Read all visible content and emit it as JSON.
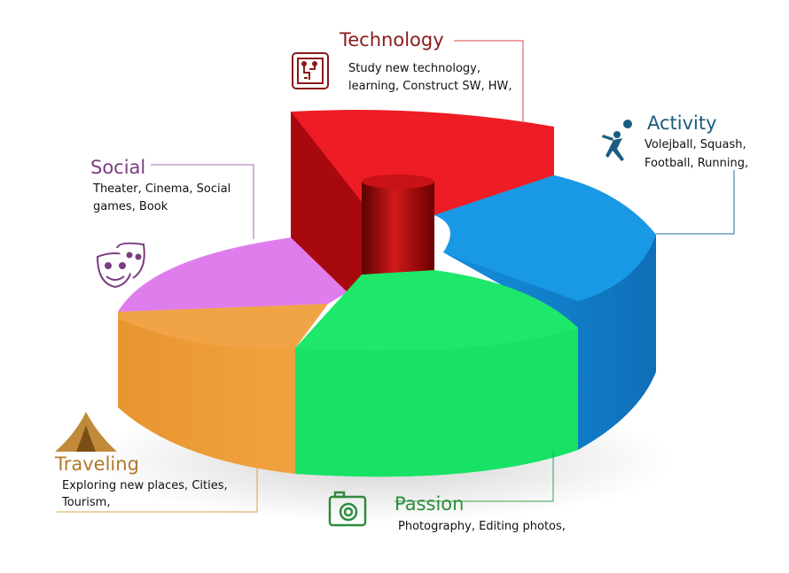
{
  "segments": [
    {
      "key": "technology",
      "title": "Technology",
      "line1": "Study new technology,",
      "line2": "learning, Construct SW, HW,",
      "color": "#8b1a1a",
      "fill": "#ee1c24",
      "icon": "circuit-chip-icon"
    },
    {
      "key": "activity",
      "title": "Activity",
      "line1": "Volejball, Squash,",
      "line2": "Football, Running,",
      "color": "#1a5c80",
      "fill": "#1996e3",
      "icon": "volleyball-player-icon"
    },
    {
      "key": "social",
      "title": "Social",
      "line1": "Theater, Cinema, Social",
      "line2": "games, Book",
      "color": "#7a3d80",
      "fill": "#e07ded",
      "icon": "theater-masks-icon"
    },
    {
      "key": "traveling",
      "title": "Traveling",
      "line1": "Exploring new places, Cities,",
      "line2": "Tourism,",
      "color": "#b07a2a",
      "fill": "#f2a541",
      "icon": "tent-icon"
    },
    {
      "key": "passion",
      "title": "Passion",
      "line1": "Photography, Editing photos,",
      "line2": "",
      "color": "#2e8b3e",
      "fill": "#1ee86a",
      "icon": "camera-icon"
    }
  ]
}
